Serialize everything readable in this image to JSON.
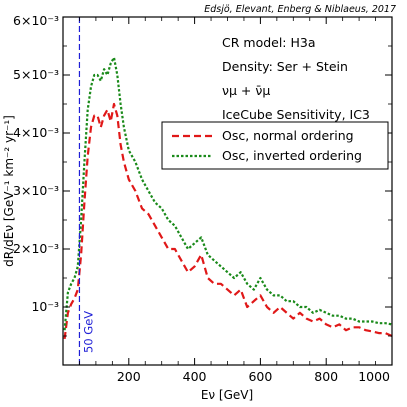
{
  "chart_data": {
    "type": "line",
    "credit": "Edsjö, Elevant, Enberg & Niblaeus, 2017",
    "xlabel": "Eν [GeV]",
    "ylabel": "dR/dEν [GeV⁻¹ km⁻² yr⁻¹]",
    "xlim": [
      0,
      1000
    ],
    "ylim": [
      0,
      0.006
    ],
    "x_ticks": [
      200,
      400,
      600,
      800,
      1000
    ],
    "x_tick_labels": [
      "200",
      "400",
      "600",
      "800",
      "1000"
    ],
    "y_ticks": [
      0.001,
      0.002,
      0.003,
      0.004,
      0.005,
      0.006
    ],
    "y_tick_labels": [
      "10⁻³",
      "2×10⁻³",
      "3×10⁻³",
      "4×10⁻³",
      "5×10⁻³",
      "6×10⁻³"
    ],
    "info_lines": [
      "CR model: H3a",
      "Density: Ser + Stein",
      "νμ + ν̄μ",
      "IceCube Sensitivity, IC3"
    ],
    "vline": {
      "x": 50,
      "label": "50 GeV",
      "color": "#1f1fd6"
    },
    "legend_position": "upper-right",
    "series": [
      {
        "name": "Osc, normal ordering",
        "color": "#e01818",
        "style": "dashed",
        "x": [
          5,
          15,
          25,
          35,
          45,
          55,
          65,
          75,
          85,
          95,
          105,
          115,
          125,
          135,
          145,
          155,
          165,
          175,
          185,
          200,
          220,
          240,
          260,
          280,
          300,
          320,
          340,
          360,
          380,
          400,
          420,
          440,
          460,
          480,
          500,
          520,
          540,
          560,
          580,
          600,
          620,
          640,
          660,
          680,
          700,
          720,
          740,
          760,
          780,
          800,
          820,
          840,
          860,
          880,
          900,
          920,
          940,
          960,
          980,
          1000
        ],
        "y": [
          0.00045,
          0.0009,
          0.00105,
          0.00115,
          0.0013,
          0.0019,
          0.0028,
          0.0036,
          0.0041,
          0.0043,
          0.0043,
          0.0041,
          0.0043,
          0.0044,
          0.0042,
          0.0045,
          0.0043,
          0.0038,
          0.0035,
          0.0032,
          0.003,
          0.0027,
          0.0026,
          0.0024,
          0.0022,
          0.002,
          0.002,
          0.0018,
          0.0016,
          0.0017,
          0.0019,
          0.0015,
          0.0014,
          0.0014,
          0.0013,
          0.0012,
          0.0013,
          0.001,
          0.0011,
          0.0012,
          0.001,
          0.0009,
          0.001,
          0.0009,
          0.0008,
          0.0009,
          0.0008,
          0.00075,
          0.0008,
          0.0007,
          0.00065,
          0.0007,
          0.0006,
          0.00065,
          0.00065,
          0.0006,
          0.00058,
          0.00055,
          0.00055,
          0.0005
        ]
      },
      {
        "name": "Osc, inverted ordering",
        "color": "#1a8a1a",
        "style": "dotted",
        "x": [
          5,
          15,
          25,
          35,
          45,
          55,
          65,
          75,
          85,
          95,
          105,
          115,
          125,
          135,
          145,
          155,
          165,
          175,
          185,
          200,
          220,
          240,
          260,
          280,
          300,
          320,
          340,
          360,
          380,
          400,
          420,
          440,
          460,
          480,
          500,
          520,
          540,
          560,
          580,
          600,
          620,
          640,
          660,
          680,
          700,
          720,
          740,
          760,
          780,
          800,
          820,
          840,
          860,
          880,
          900,
          920,
          940,
          960,
          980,
          1000
        ],
        "y": [
          0.0006,
          0.00125,
          0.0014,
          0.0015,
          0.0017,
          0.0025,
          0.0035,
          0.0044,
          0.0048,
          0.005,
          0.005,
          0.0049,
          0.0051,
          0.005,
          0.0052,
          0.0053,
          0.005,
          0.0045,
          0.0041,
          0.0037,
          0.0035,
          0.0032,
          0.003,
          0.0028,
          0.0027,
          0.0025,
          0.0024,
          0.0022,
          0.002,
          0.0021,
          0.0022,
          0.0019,
          0.0018,
          0.0017,
          0.0016,
          0.0015,
          0.0016,
          0.0014,
          0.0013,
          0.0015,
          0.0013,
          0.0012,
          0.0012,
          0.0011,
          0.0011,
          0.001,
          0.001,
          0.0009,
          0.00095,
          0.0009,
          0.00085,
          0.00085,
          0.0008,
          0.0008,
          0.00075,
          0.00075,
          0.00075,
          0.00072,
          0.00072,
          0.0007
        ]
      }
    ]
  }
}
